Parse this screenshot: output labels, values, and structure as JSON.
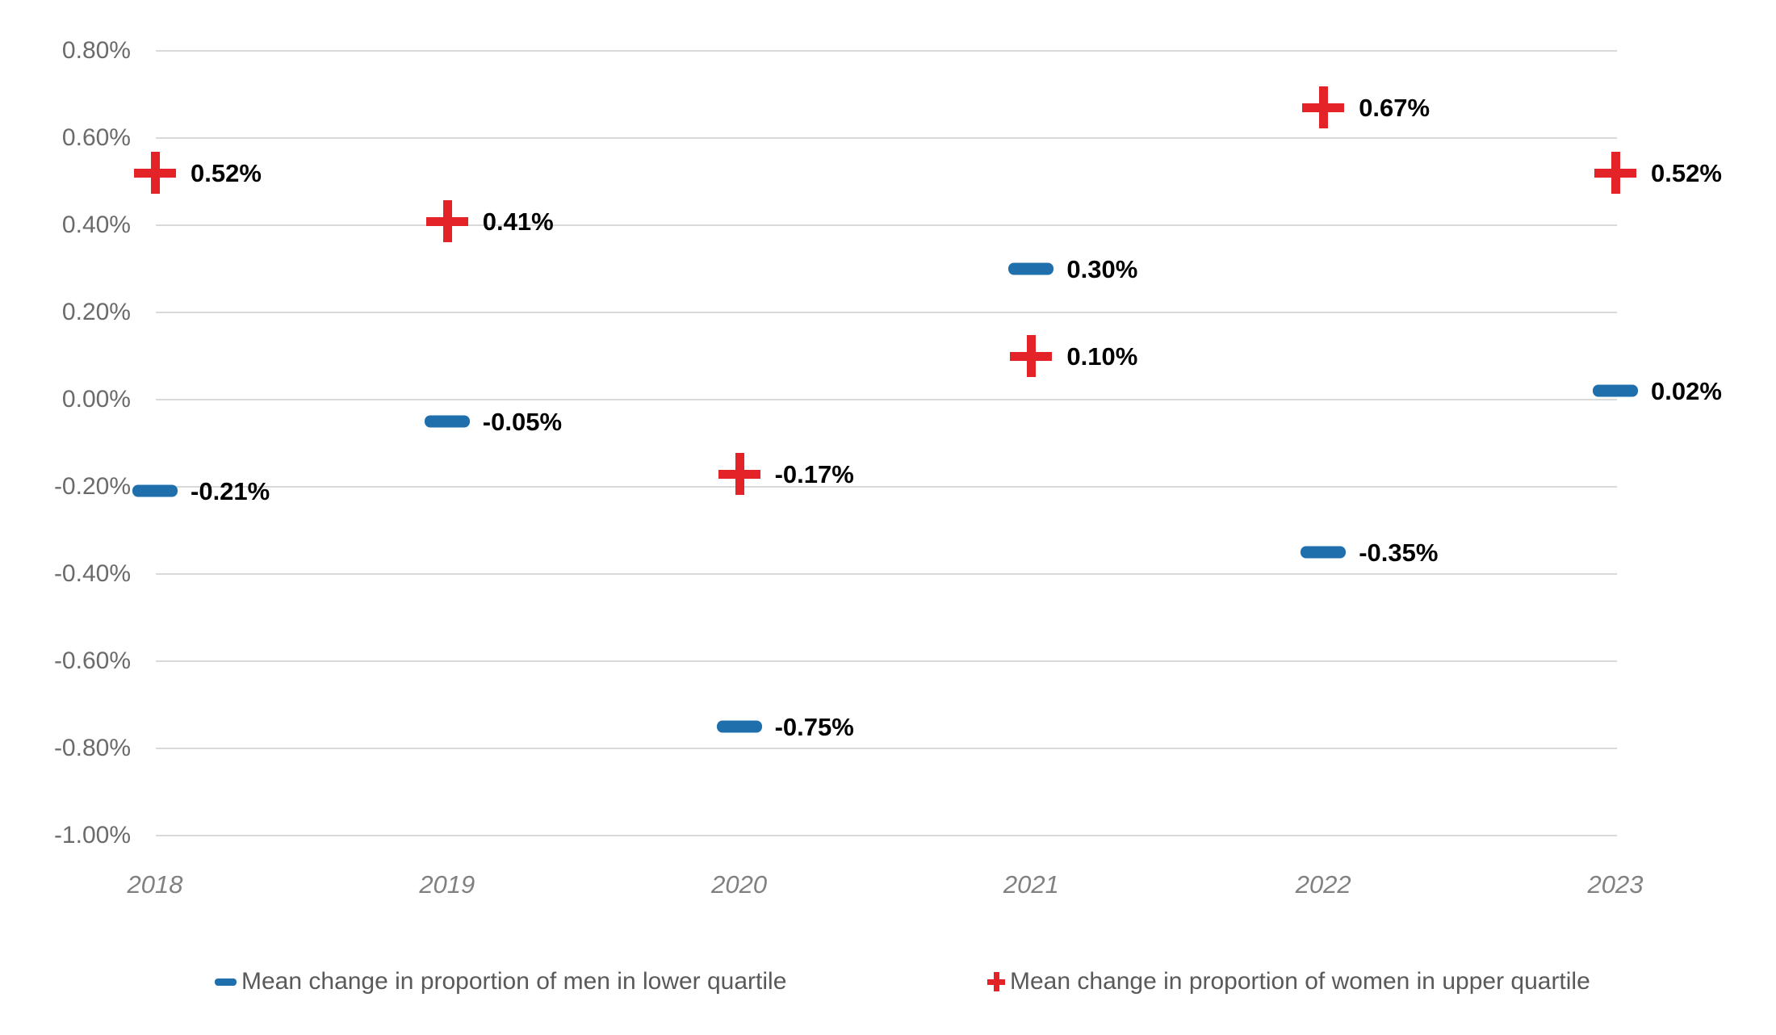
{
  "chart": {
    "background_color": "#FFFFFF",
    "grid_color": "#D9D9D9",
    "y_axis_label_color": "#6B6B6B",
    "x_axis_label_color": "#808080",
    "data_label_color": "#000000",
    "series_men_color": "#1F6FAD",
    "series_women_color": "#E42328"
  },
  "chart_data": {
    "type": "scatter",
    "title": "",
    "xlabel": "",
    "ylabel": "",
    "categories": [
      "2018",
      "2019",
      "2020",
      "2021",
      "2022",
      "2023"
    ],
    "series": [
      {
        "name": "Mean change in proportion of men in lower quartile",
        "marker": "dash",
        "color": "#1F6FAD",
        "values": [
          -0.21,
          -0.05,
          -0.75,
          0.3,
          -0.35,
          0.02
        ],
        "point_labels": [
          "-0.21%",
          "-0.05%",
          "-0.75%",
          "0.30%",
          "-0.35%",
          "0.02%"
        ]
      },
      {
        "name": "Mean change in proportion of women in upper quartile",
        "marker": "plus",
        "color": "#E42328",
        "values": [
          0.52,
          0.41,
          -0.17,
          0.1,
          0.67,
          0.52
        ],
        "point_labels": [
          "0.52%",
          "0.41%",
          "-0.17%",
          "0.10%",
          "0.67%",
          "0.52%"
        ]
      }
    ],
    "ylim": [
      -1.0,
      0.8
    ],
    "y_ticks": [
      0.8,
      0.6,
      0.4,
      0.2,
      0.0,
      -0.2,
      -0.4,
      -0.6,
      -0.8,
      -1.0
    ],
    "y_tick_labels": [
      "0.80%",
      "0.60%",
      "0.40%",
      "0.20%",
      "0.00%",
      "-0.20%",
      "-0.40%",
      "-0.60%",
      "-0.80%",
      "-1.00%"
    ],
    "grid": "horizontal",
    "legend_position": "bottom"
  }
}
